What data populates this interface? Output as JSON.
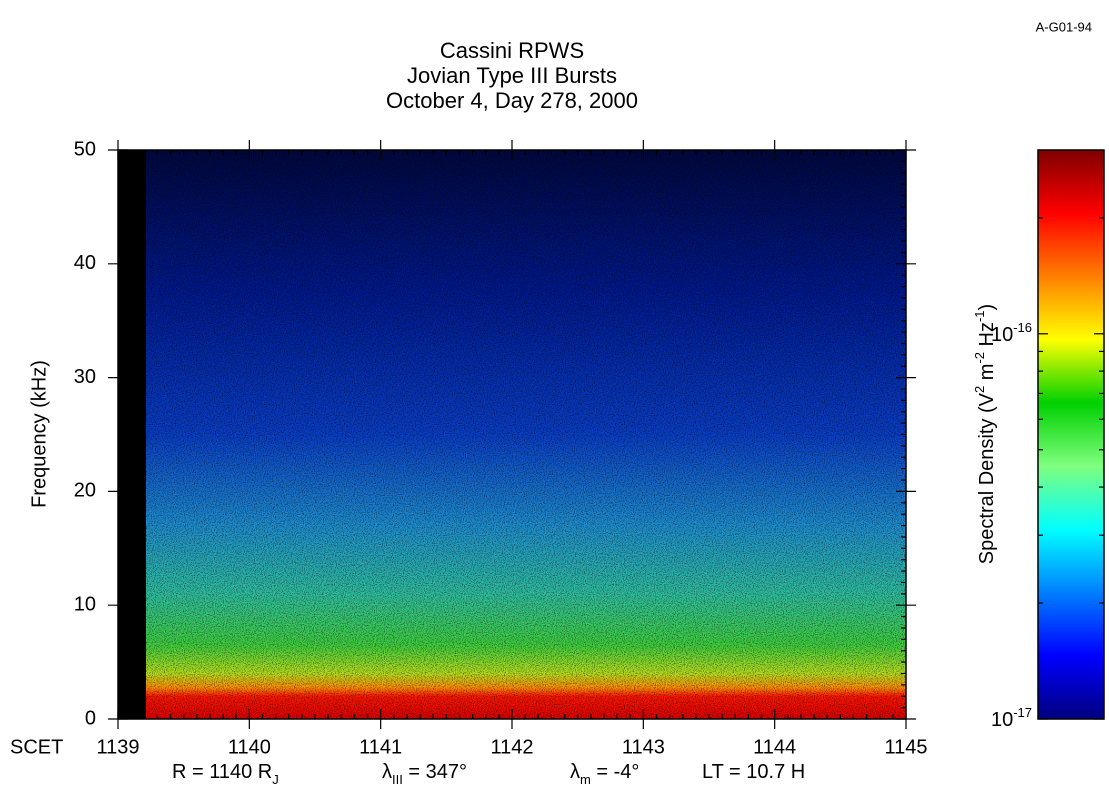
{
  "corner_label": "A-G01-94",
  "chart_data": {
    "type": "spectrogram",
    "title": [
      "Cassini RPWS",
      "Jovian Type III Bursts",
      "October 4, Day 278, 2000"
    ],
    "ylabel": "Frequency (kHz)",
    "x_prefix": "SCET",
    "xlim": [
      1139,
      1145
    ],
    "xticks": [
      1139,
      1140,
      1141,
      1142,
      1143,
      1144,
      1145
    ],
    "ylim": [
      0,
      50
    ],
    "yticks": [
      0,
      10,
      20,
      30,
      40,
      50
    ],
    "x_minor_divisions": 10,
    "y_minor_divisions": 10,
    "colorbar": {
      "label_parts": [
        "Spectral Density (V",
        "2",
        " m",
        "-2",
        " Hz",
        "-1",
        ")"
      ],
      "scale": "log",
      "clim": [
        1e-17,
        3e-16
      ],
      "ticks": [
        {
          "value": 1e-17,
          "label": "10",
          "exponent": "-17"
        },
        {
          "value": 1e-16,
          "label": "10",
          "exponent": "-16"
        }
      ],
      "colors": [
        "#00007f",
        "#0000ff",
        "#007fff",
        "#00ffff",
        "#7fff7f",
        "#00d000",
        "#ffff00",
        "#ff7f00",
        "#ff0000",
        "#7f0000"
      ]
    },
    "footer": [
      {
        "parts": [
          "R = 1140 R",
          "J"
        ]
      },
      {
        "parts": [
          "λ",
          "III",
          " = 347°"
        ]
      },
      {
        "parts": [
          "λ",
          "m",
          " = -4°"
        ]
      },
      {
        "parts": [
          "LT = 10.7 H"
        ]
      }
    ]
  }
}
